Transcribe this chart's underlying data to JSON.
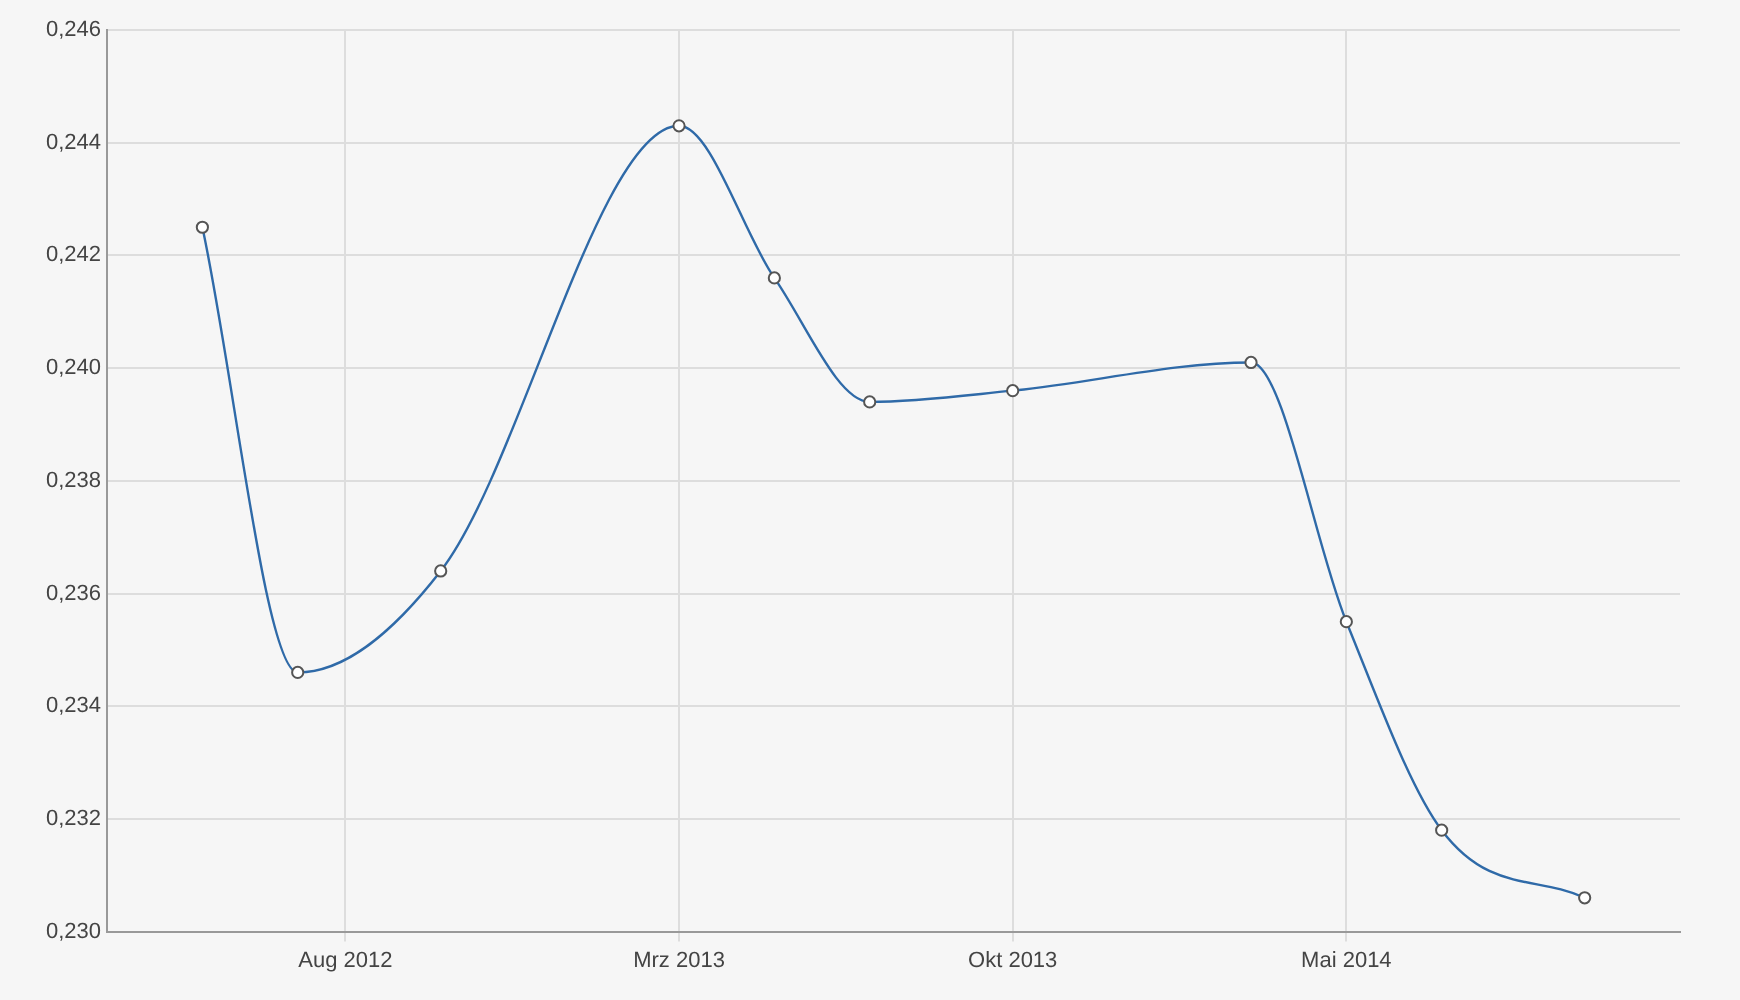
{
  "chart_data": {
    "type": "line",
    "x": [
      "2012-05",
      "2012-07",
      "2012-10",
      "2013-03",
      "2013-05",
      "2013-07",
      "2013-10",
      "2014-03",
      "2014-05",
      "2014-07",
      "2014-10"
    ],
    "series": [
      {
        "color": "#2f6aa8",
        "values": [
          0.2425,
          0.2346,
          0.2364,
          0.2443,
          0.2416,
          0.2394,
          0.2396,
          0.2401,
          0.2355,
          0.2318,
          0.2306
        ]
      }
    ],
    "xlim": [
      "2012-03",
      "2014-12"
    ],
    "xticks": [
      {
        "value": "2012-08",
        "label": "Aug 2012"
      },
      {
        "value": "2013-03",
        "label": "Mrz 2013"
      },
      {
        "value": "2013-10",
        "label": "Okt 2013"
      },
      {
        "value": "2014-05",
        "label": "Mai 2014"
      }
    ],
    "ylim": [
      0.23,
      0.246
    ],
    "yticks": [
      {
        "value": 0.23,
        "label": "0,230"
      },
      {
        "value": 0.232,
        "label": "0,232"
      },
      {
        "value": 0.234,
        "label": "0,234"
      },
      {
        "value": 0.236,
        "label": "0,236"
      },
      {
        "value": 0.238,
        "label": "0,238"
      },
      {
        "value": 0.24,
        "label": "0,240"
      },
      {
        "value": 0.242,
        "label": "0,242"
      },
      {
        "value": 0.244,
        "label": "0,244"
      },
      {
        "value": 0.246,
        "label": "0,246"
      }
    ],
    "grid": true,
    "legend": false,
    "marker": "circle",
    "line_style": "solid"
  }
}
